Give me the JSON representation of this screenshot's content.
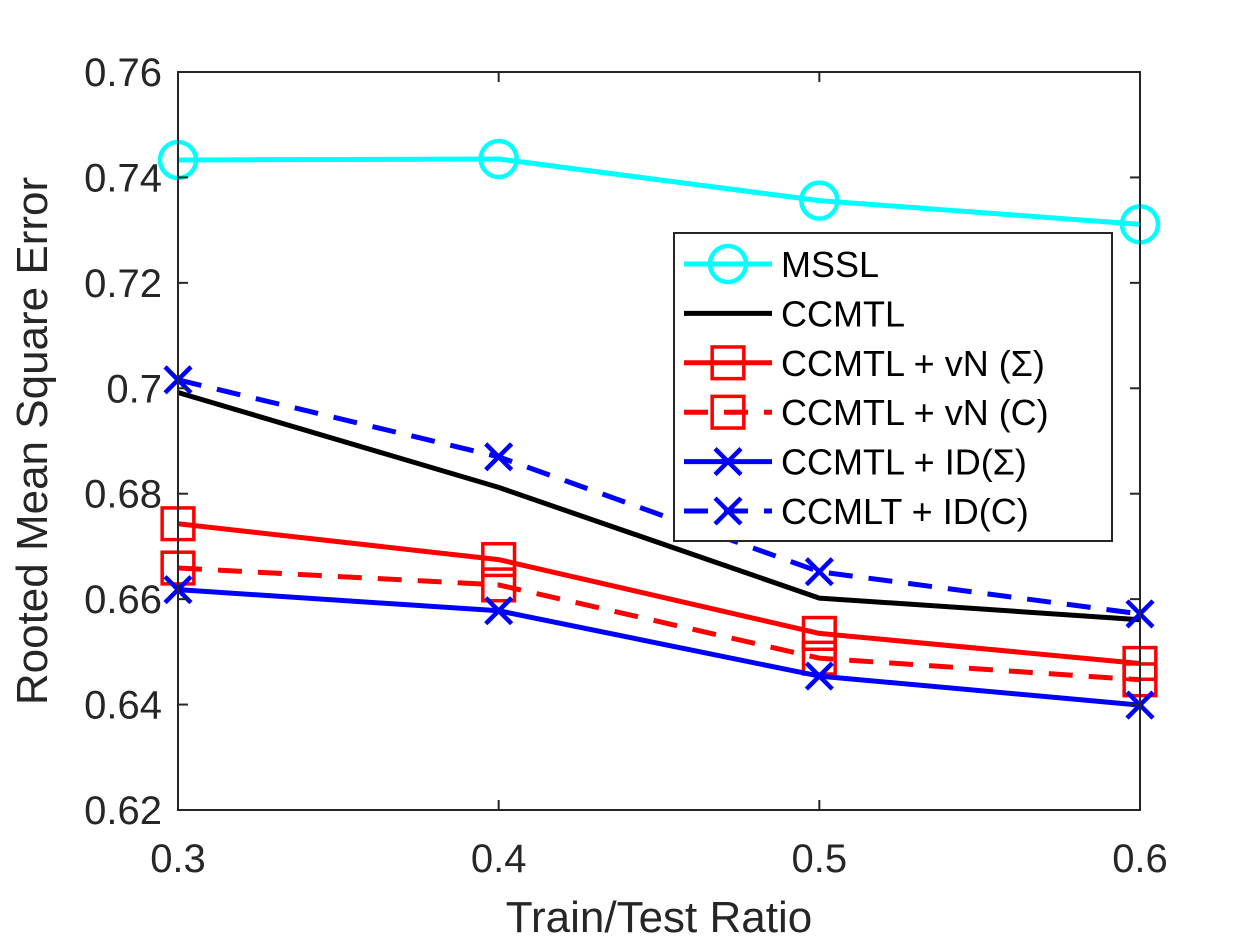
{
  "chart_data": {
    "type": "line",
    "xlabel": "Train/Test Ratio",
    "ylabel": "Rooted Mean Square Error",
    "xlim": [
      0.3,
      0.6
    ],
    "ylim": [
      0.62,
      0.76
    ],
    "x_ticks": [
      "0.3",
      "0.4",
      "0.5",
      "0.6"
    ],
    "y_ticks": [
      "0.62",
      "0.64",
      "0.66",
      "0.68",
      "0.7",
      "0.72",
      "0.74",
      "0.76"
    ],
    "x": [
      0.3,
      0.4,
      0.5,
      0.6
    ],
    "legend_position": "right",
    "series": [
      {
        "name": "MSSL",
        "values": [
          0.7433,
          0.7435,
          0.7356,
          0.7311
        ],
        "color": "#00ffff",
        "dashed": false,
        "marker": "circle"
      },
      {
        "name": "CCMTL",
        "values": [
          0.6992,
          0.6812,
          0.6602,
          0.6561
        ],
        "color": "#000000",
        "dashed": false,
        "marker": "none"
      },
      {
        "name": "CCMTL + vN (Σ)",
        "values": [
          0.6743,
          0.6675,
          0.6535,
          0.6478
        ],
        "color": "#ff0000",
        "dashed": false,
        "marker": "square"
      },
      {
        "name": "CCMTL + vN (C)",
        "values": [
          0.6659,
          0.6627,
          0.6488,
          0.6447
        ],
        "color": "#ff0000",
        "dashed": true,
        "marker": "square"
      },
      {
        "name": "CCMTL + ID(Σ)",
        "values": [
          0.6618,
          0.6578,
          0.6454,
          0.6399
        ],
        "color": "#0000ff",
        "dashed": false,
        "marker": "x"
      },
      {
        "name": "CCMLT + ID(C)",
        "values": [
          0.7016,
          0.687,
          0.6652,
          0.6572
        ],
        "color": "#0000ff",
        "dashed": true,
        "marker": "x"
      }
    ]
  }
}
